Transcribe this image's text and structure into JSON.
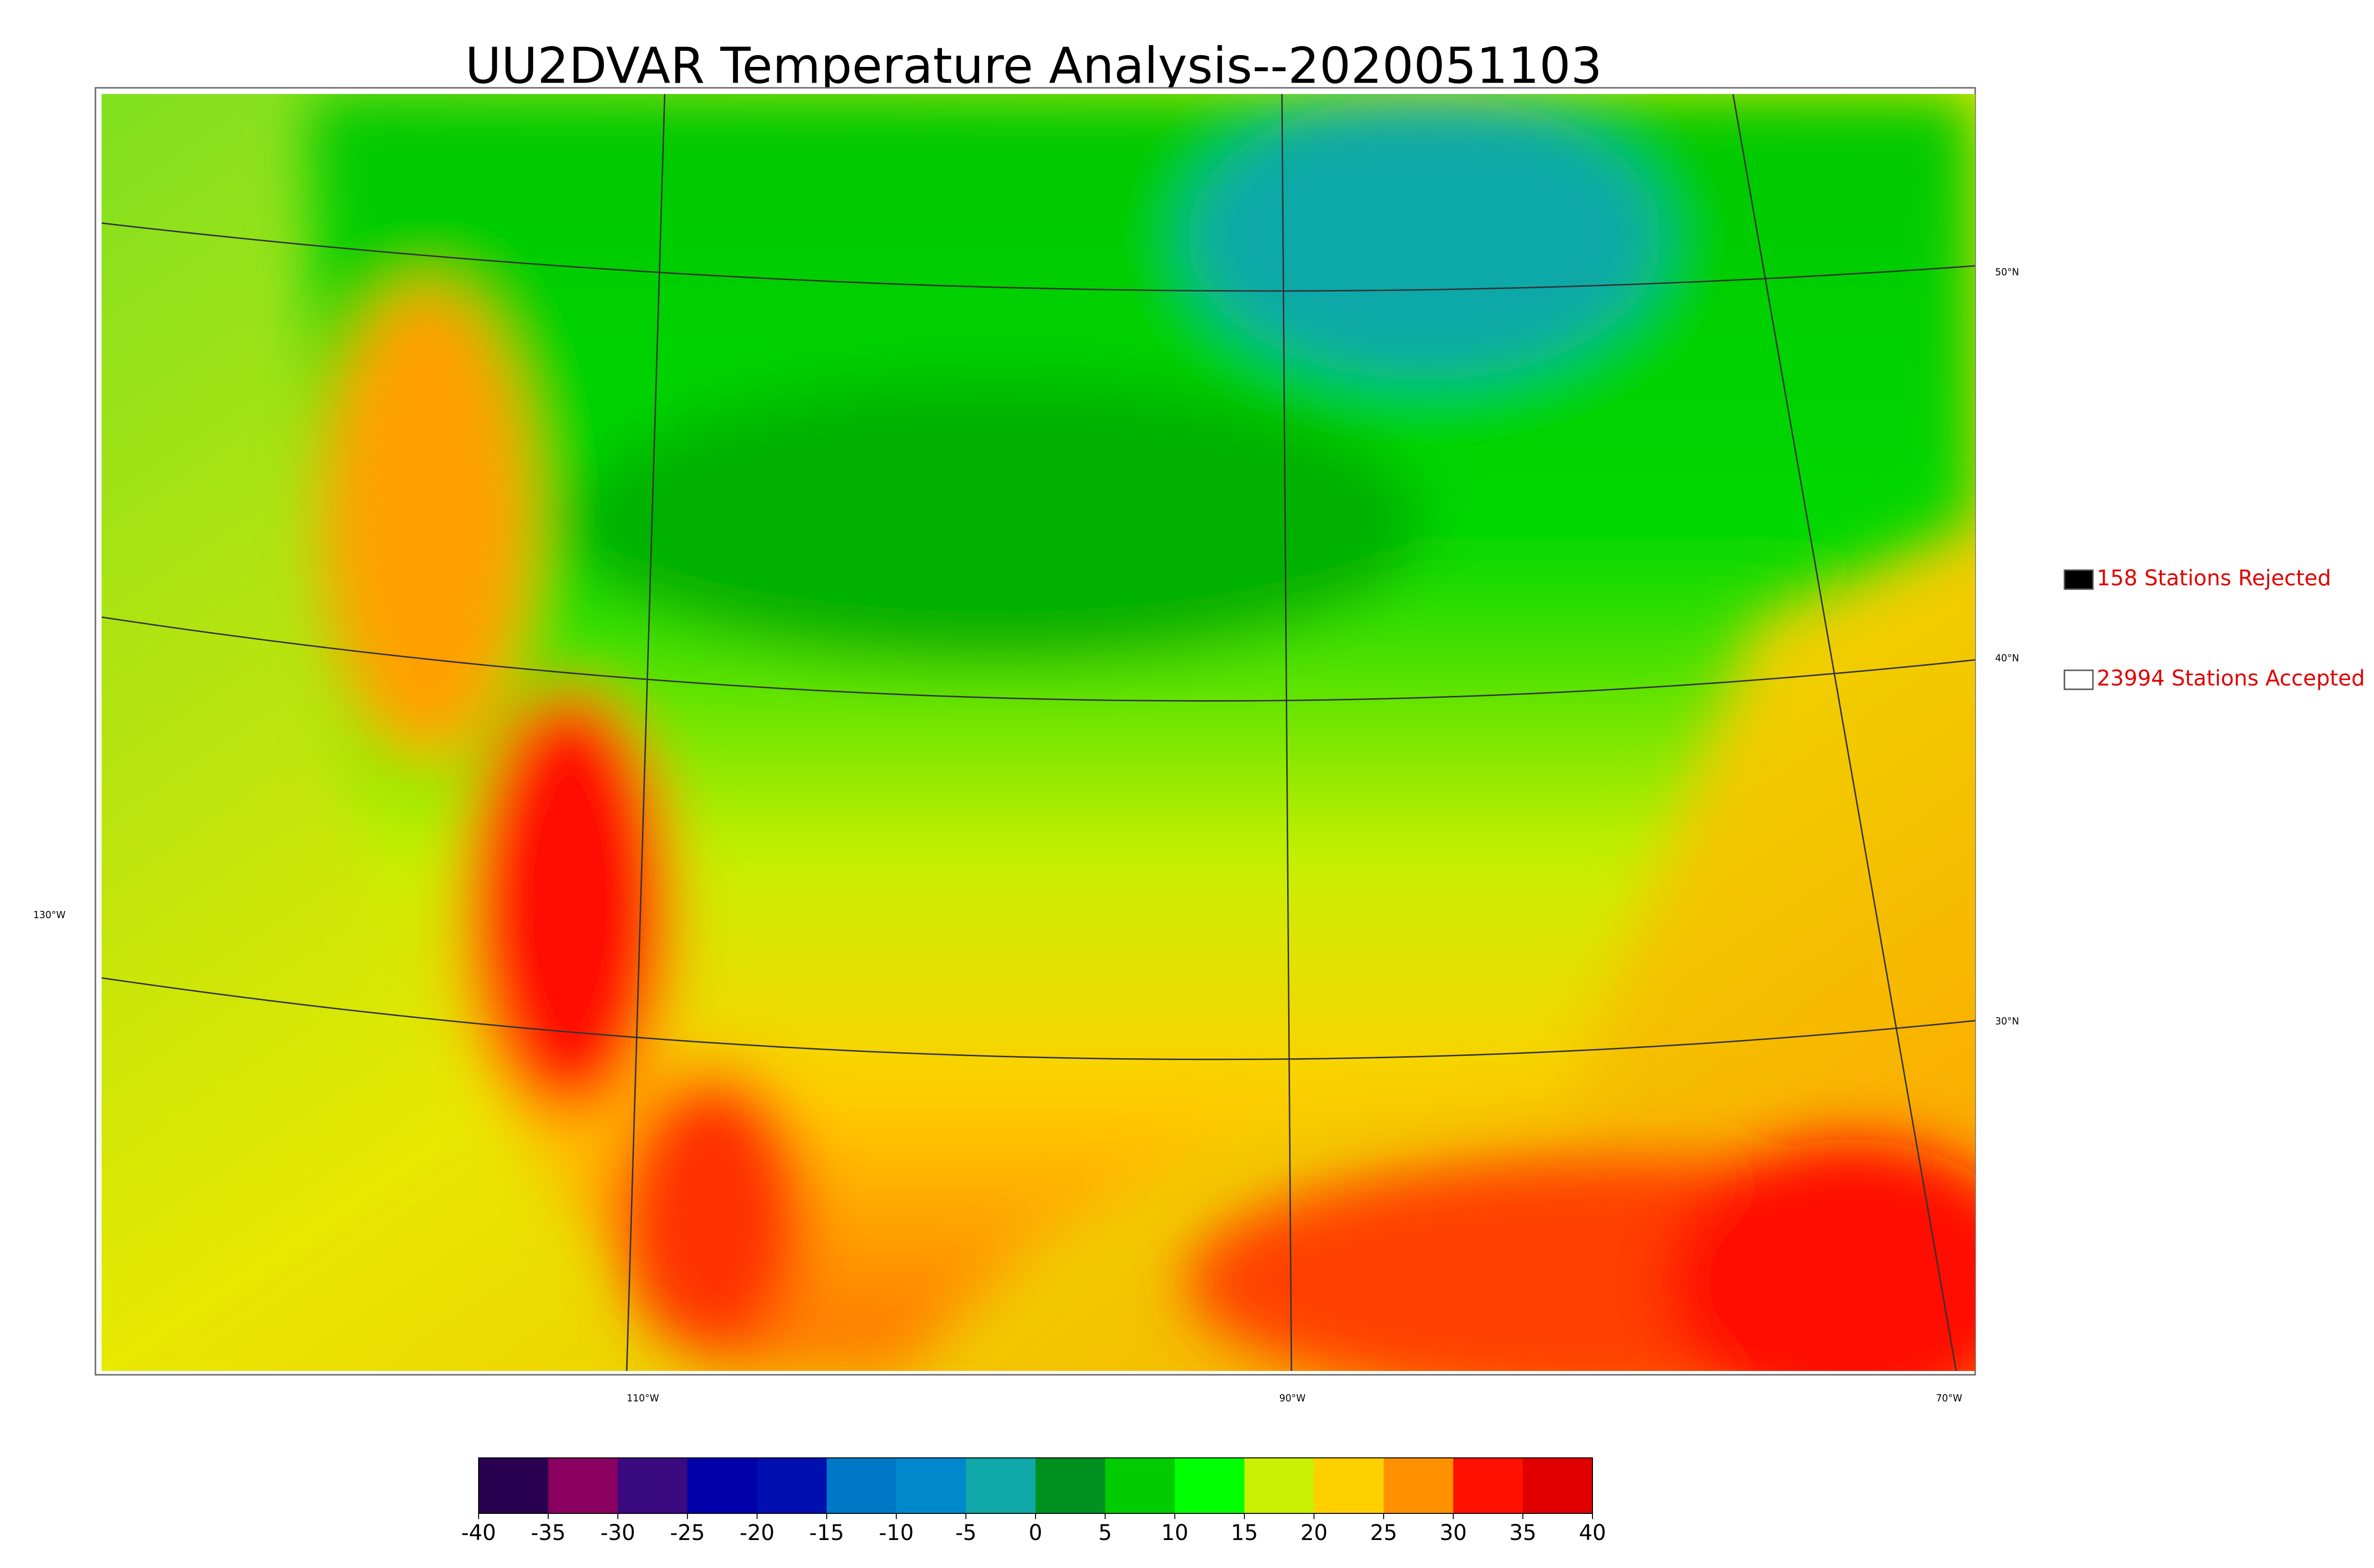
{
  "title": "UU2DVAR Temperature Analysis--2020051103",
  "map": {
    "lat_labels": [
      "50°N",
      "40°N",
      "30°N"
    ],
    "lon_labels": [
      "130°W",
      "110°W",
      "90°W",
      "70°W"
    ]
  },
  "legend": [
    {
      "label": "158 Stations Rejected",
      "color": "#000000"
    },
    {
      "label": "23994 Stations Accepted",
      "color": "#ffffff"
    }
  ],
  "colorbar": {
    "lim": [
      -40,
      40
    ],
    "ticks": [
      -40,
      -35,
      -30,
      -25,
      -20,
      -15,
      -10,
      -5,
      0,
      5,
      10,
      15,
      20,
      25,
      30,
      35,
      40
    ],
    "colors": [
      "#2a0050",
      "#8a0060",
      "#3a0a80",
      "#0000aa",
      "#0010b0",
      "#0078c8",
      "#0088cc",
      "#10a8a8",
      "#009020",
      "#00cc00",
      "#00ff00",
      "#c8f000",
      "#ffd000",
      "#ff9000",
      "#ff1000",
      "#e00000"
    ]
  }
}
